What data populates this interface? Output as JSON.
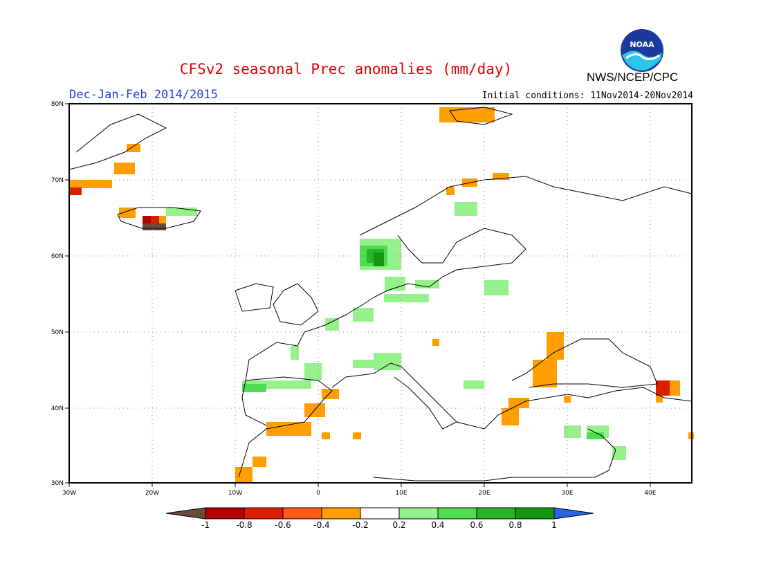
{
  "header": {
    "title": "CFSv2 seasonal Prec anomalies (mm/day)",
    "season": "Dec-Jan-Feb 2014/2015",
    "initial_conditions": "Initial conditions: 11Nov2014-20Nov2014",
    "agency": "NWS/NCEP/CPC",
    "logo_text": "NOAA"
  },
  "map": {
    "lon_ticks": [
      "30W",
      "20W",
      "10W",
      "0",
      "10E",
      "20E",
      "30E",
      "40E"
    ],
    "lat_ticks": [
      "80N",
      "70N",
      "60N",
      "50N",
      "40N",
      "30N"
    ]
  },
  "colorbar": {
    "labels": [
      "-1",
      "-0.8",
      "-0.6",
      "-0.4",
      "-0.2",
      "0.2",
      "0.4",
      "0.6",
      "0.8",
      "1"
    ],
    "colors": [
      "#6b4a3a",
      "#b40000",
      "#dc1e00",
      "#ff5a14",
      "#ff9e00",
      "#ffffff",
      "#96f08c",
      "#50dc50",
      "#28b428",
      "#149614",
      "#2864e6"
    ]
  }
}
